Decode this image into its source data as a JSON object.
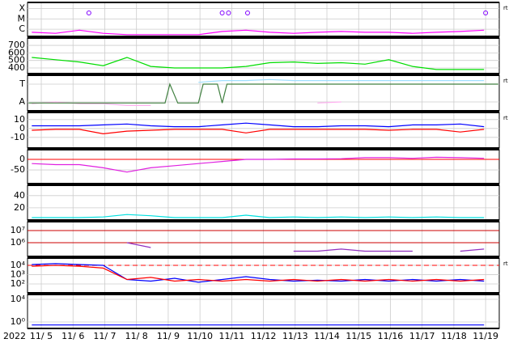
{
  "chart_data": [
    {
      "type": "line",
      "log": true,
      "ylim": [
        2e-07,
        0.0004
      ],
      "right_label": "rt",
      "yticks": [
        {
          "value": 0.0001,
          "label": "X"
        },
        {
          "value": 1e-05,
          "label": "M"
        },
        {
          "value": 1e-06,
          "label": "C"
        }
      ],
      "x": [
        4.7,
        5.45,
        6.2,
        6.95,
        7.7,
        8.45,
        9.2,
        9.95,
        10.7,
        11.45,
        12.2,
        12.95,
        13.7,
        14.45,
        15.2,
        15.95,
        16.7,
        17.45,
        18.2,
        18.95
      ],
      "series": [
        {
          "color": "#ff00ff",
          "values": [
            5e-07,
            4e-07,
            8e-07,
            4e-07,
            3e-07,
            3e-07,
            3e-07,
            3e-07,
            6e-07,
            8e-07,
            5e-07,
            4e-07,
            5e-07,
            6e-07,
            5e-07,
            5e-07,
            4e-07,
            5e-07,
            6e-07,
            8e-07
          ]
        }
      ],
      "flare_marks": [
        6.5,
        10.7,
        10.9,
        11.5,
        19.0
      ],
      "flare_color": "#8000ff"
    },
    {
      "type": "line",
      "log": false,
      "ylim": [
        325,
        797
      ],
      "yticks": [
        700,
        600,
        500,
        400
      ],
      "x": [
        4.7,
        5.45,
        6.2,
        6.95,
        7.7,
        8.45,
        9.2,
        9.95,
        10.7,
        11.45,
        12.2,
        12.95,
        13.7,
        14.45,
        15.2,
        15.95,
        16.7,
        17.45,
        18.2,
        18.95
      ],
      "series": [
        {
          "color": "#00dd00",
          "values": [
            540,
            510,
            480,
            430,
            540,
            420,
            400,
            400,
            400,
            420,
            470,
            480,
            460,
            470,
            450,
            510,
            420,
            380,
            380,
            380
          ]
        }
      ]
    },
    {
      "type": "line",
      "log": false,
      "ylim": [
        0,
        1
      ],
      "right_label": "rt",
      "yticks": [
        {
          "value": 0.75,
          "label": "T"
        },
        {
          "value": 0.25,
          "label": "A"
        }
      ],
      "x": [
        4.7,
        5.45,
        6.2,
        6.95,
        7.7,
        8.45,
        9.2,
        9.95,
        10.7,
        11.45,
        12.2,
        12.95,
        13.7,
        14.45,
        15.2,
        15.95,
        16.7,
        17.45,
        18.2,
        18.95
      ],
      "series": [
        {
          "color": "#a0e0ff",
          "values": [
            null,
            null,
            null,
            null,
            null,
            null,
            null,
            0.8,
            0.85,
            0.85,
            0.88,
            0.85,
            0.85,
            0.85,
            0.85,
            0.85,
            0.85,
            0.85,
            0.85,
            0.85
          ]
        },
        {
          "color": "#ffb0f0",
          "values": [
            0.2,
            0.25,
            0.2,
            0.2,
            0.15,
            0.15,
            null,
            null,
            null,
            null,
            null,
            null,
            0.22,
            0.25,
            null,
            null,
            null,
            0.22,
            null,
            null
          ]
        },
        {
          "color": "#408040",
          "x": [
            4.6,
            8.9,
            9.05,
            9.3,
            9.95,
            10.1,
            10.55,
            10.7,
            10.85,
            19.4
          ],
          "values": [
            0.22,
            0.22,
            0.75,
            0.22,
            0.22,
            0.75,
            0.75,
            0.22,
            0.75,
            0.75
          ]
        }
      ]
    },
    {
      "type": "line",
      "log": false,
      "ylim": [
        -22,
        18
      ],
      "right_label": "rt",
      "yticks": [
        10,
        0,
        -10
      ],
      "x": [
        4.7,
        5.45,
        6.2,
        6.95,
        7.7,
        8.45,
        9.2,
        9.95,
        10.7,
        11.45,
        12.2,
        12.95,
        13.7,
        14.45,
        15.2,
        15.95,
        16.7,
        17.45,
        18.2,
        18.95
      ],
      "series": [
        {
          "color": "#0000ff",
          "values": [
            3,
            3,
            3,
            4,
            5,
            3,
            2,
            2,
            4,
            6,
            4,
            2,
            2,
            3,
            3,
            2,
            4,
            4,
            5,
            2
          ]
        },
        {
          "color": "#ff0000",
          "values": [
            -2,
            -1,
            -1,
            -6,
            -3,
            -2,
            -1,
            -1,
            -1,
            -5,
            -1,
            -1,
            -1,
            -1,
            -1,
            -2,
            -1,
            -1,
            -4,
            -1
          ]
        }
      ]
    },
    {
      "type": "line",
      "log": false,
      "ylim": [
        -115,
        46
      ],
      "yticks": [
        0,
        -50
      ],
      "ref_lines": [
        0
      ],
      "ref_color": "#ff0000",
      "x": [
        4.7,
        5.45,
        6.2,
        6.95,
        7.7,
        8.45,
        9.2,
        9.95,
        10.7,
        11.45,
        12.2,
        12.95,
        13.7,
        14.45,
        15.2,
        15.95,
        16.7,
        17.45,
        18.2,
        18.95
      ],
      "series": [
        {
          "color": "#e020e0",
          "values": [
            -20,
            -25,
            -25,
            -40,
            -60,
            -40,
            -30,
            -20,
            -10,
            0,
            0,
            2,
            2,
            3,
            8,
            8,
            5,
            10,
            8,
            5
          ]
        }
      ]
    },
    {
      "type": "line",
      "log": false,
      "ylim": [
        0,
        57
      ],
      "yticks": [
        40,
        20
      ],
      "x": [
        4.7,
        5.45,
        6.2,
        6.95,
        7.7,
        8.45,
        9.2,
        9.95,
        10.7,
        11.45,
        12.2,
        12.95,
        13.7,
        14.45,
        15.2,
        15.95,
        16.7,
        17.45,
        18.2,
        18.95
      ],
      "series": [
        {
          "color": "#00e0e0",
          "values": [
            4,
            4,
            4,
            5,
            9,
            7,
            4,
            4,
            4,
            8,
            4,
            5,
            4,
            5,
            4,
            5,
            4,
            5,
            4,
            4
          ]
        }
      ]
    },
    {
      "type": "line",
      "log": true,
      "ylim": [
        74000,
        54000000
      ],
      "yticks": [
        {
          "value": 10000000,
          "label": "10⁷"
        },
        {
          "value": 1000000,
          "label": "10⁶"
        }
      ],
      "ref_lines": [
        10000000,
        1000000
      ],
      "ref_color": "#cc0000",
      "x": [
        4.7,
        5.45,
        6.2,
        6.95,
        7.7,
        8.45,
        9.2,
        9.95,
        10.7,
        11.45,
        12.2,
        12.95,
        13.7,
        14.45,
        15.2,
        15.95,
        16.7,
        17.45,
        18.2,
        18.95
      ],
      "series": [
        {
          "color": "#9030c0",
          "values": [
            null,
            null,
            null,
            null,
            1000000,
            400000,
            null,
            null,
            null,
            300000,
            null,
            200000,
            200000,
            300000,
            200000,
            200000,
            200000,
            null,
            200000,
            300000
          ]
        }
      ]
    },
    {
      "type": "line",
      "log": true,
      "ylim": [
        11,
        60000
      ],
      "right_label": "rt",
      "yticks": [
        {
          "value": 10000,
          "label": "10⁴"
        },
        {
          "value": 1000,
          "label": "10³"
        },
        {
          "value": 100,
          "label": "10²"
        }
      ],
      "ref_lines": [
        10000
      ],
      "ref_color": "#ff0000",
      "ref_dash": true,
      "x": [
        4.7,
        5.45,
        6.2,
        6.95,
        7.7,
        8.45,
        9.2,
        9.95,
        10.7,
        11.45,
        12.2,
        12.95,
        13.7,
        14.45,
        15.2,
        15.95,
        16.7,
        17.45,
        18.2,
        18.95
      ],
      "series": [
        {
          "color": "#0000ff",
          "values": [
            12000,
            15000,
            12000,
            10000,
            300,
            200,
            400,
            150,
            300,
            600,
            300,
            200,
            250,
            200,
            300,
            200,
            300,
            200,
            300,
            200
          ]
        },
        {
          "color": "#ff0000",
          "values": [
            8000,
            10000,
            8000,
            5000,
            300,
            500,
            200,
            300,
            200,
            300,
            200,
            300,
            200,
            300,
            200,
            300,
            200,
            300,
            200,
            300
          ]
        }
      ]
    },
    {
      "type": "line",
      "log": true,
      "ylim": [
        0.072,
        72000
      ],
      "yticks": [
        {
          "value": 10000,
          "label": "10⁴"
        },
        {
          "value": 1,
          "label": "10⁰"
        }
      ],
      "x": [
        4.7,
        5.45,
        6.2,
        6.95,
        7.7,
        8.45,
        9.2,
        9.95,
        10.7,
        11.45,
        12.2,
        12.95,
        13.7,
        14.45,
        15.2,
        15.95,
        16.7,
        17.45,
        18.2,
        18.95
      ],
      "series": [
        {
          "color": "#0000ff",
          "values": [
            0.3,
            0.3,
            0.3,
            0.3,
            0.3,
            0.3,
            0.3,
            0.3,
            0.3,
            0.3,
            0.3,
            0.3,
            0.3,
            0.3,
            0.3,
            0.3,
            0.3,
            0.3,
            0.3,
            0.3
          ]
        }
      ],
      "xlim": [
        4.566,
        19.43
      ],
      "year_label": "2022",
      "xticks": [
        {
          "value": 5,
          "label": "11/ 5"
        },
        {
          "value": 6,
          "label": "11/ 6"
        },
        {
          "value": 7,
          "label": "11/ 7"
        },
        {
          "value": 8,
          "label": "11/ 8"
        },
        {
          "value": 9,
          "label": "11/ 9"
        },
        {
          "value": 10,
          "label": "11/10"
        },
        {
          "value": 11,
          "label": "11/11"
        },
        {
          "value": 12,
          "label": "11/12"
        },
        {
          "value": 13,
          "label": "11/13"
        },
        {
          "value": 14,
          "label": "11/14"
        },
        {
          "value": 15,
          "label": "11/15"
        },
        {
          "value": 16,
          "label": "11/16"
        },
        {
          "value": 17,
          "label": "11/17"
        },
        {
          "value": 18,
          "label": "11/18"
        },
        {
          "value": 19,
          "label": "11/19"
        }
      ]
    }
  ]
}
